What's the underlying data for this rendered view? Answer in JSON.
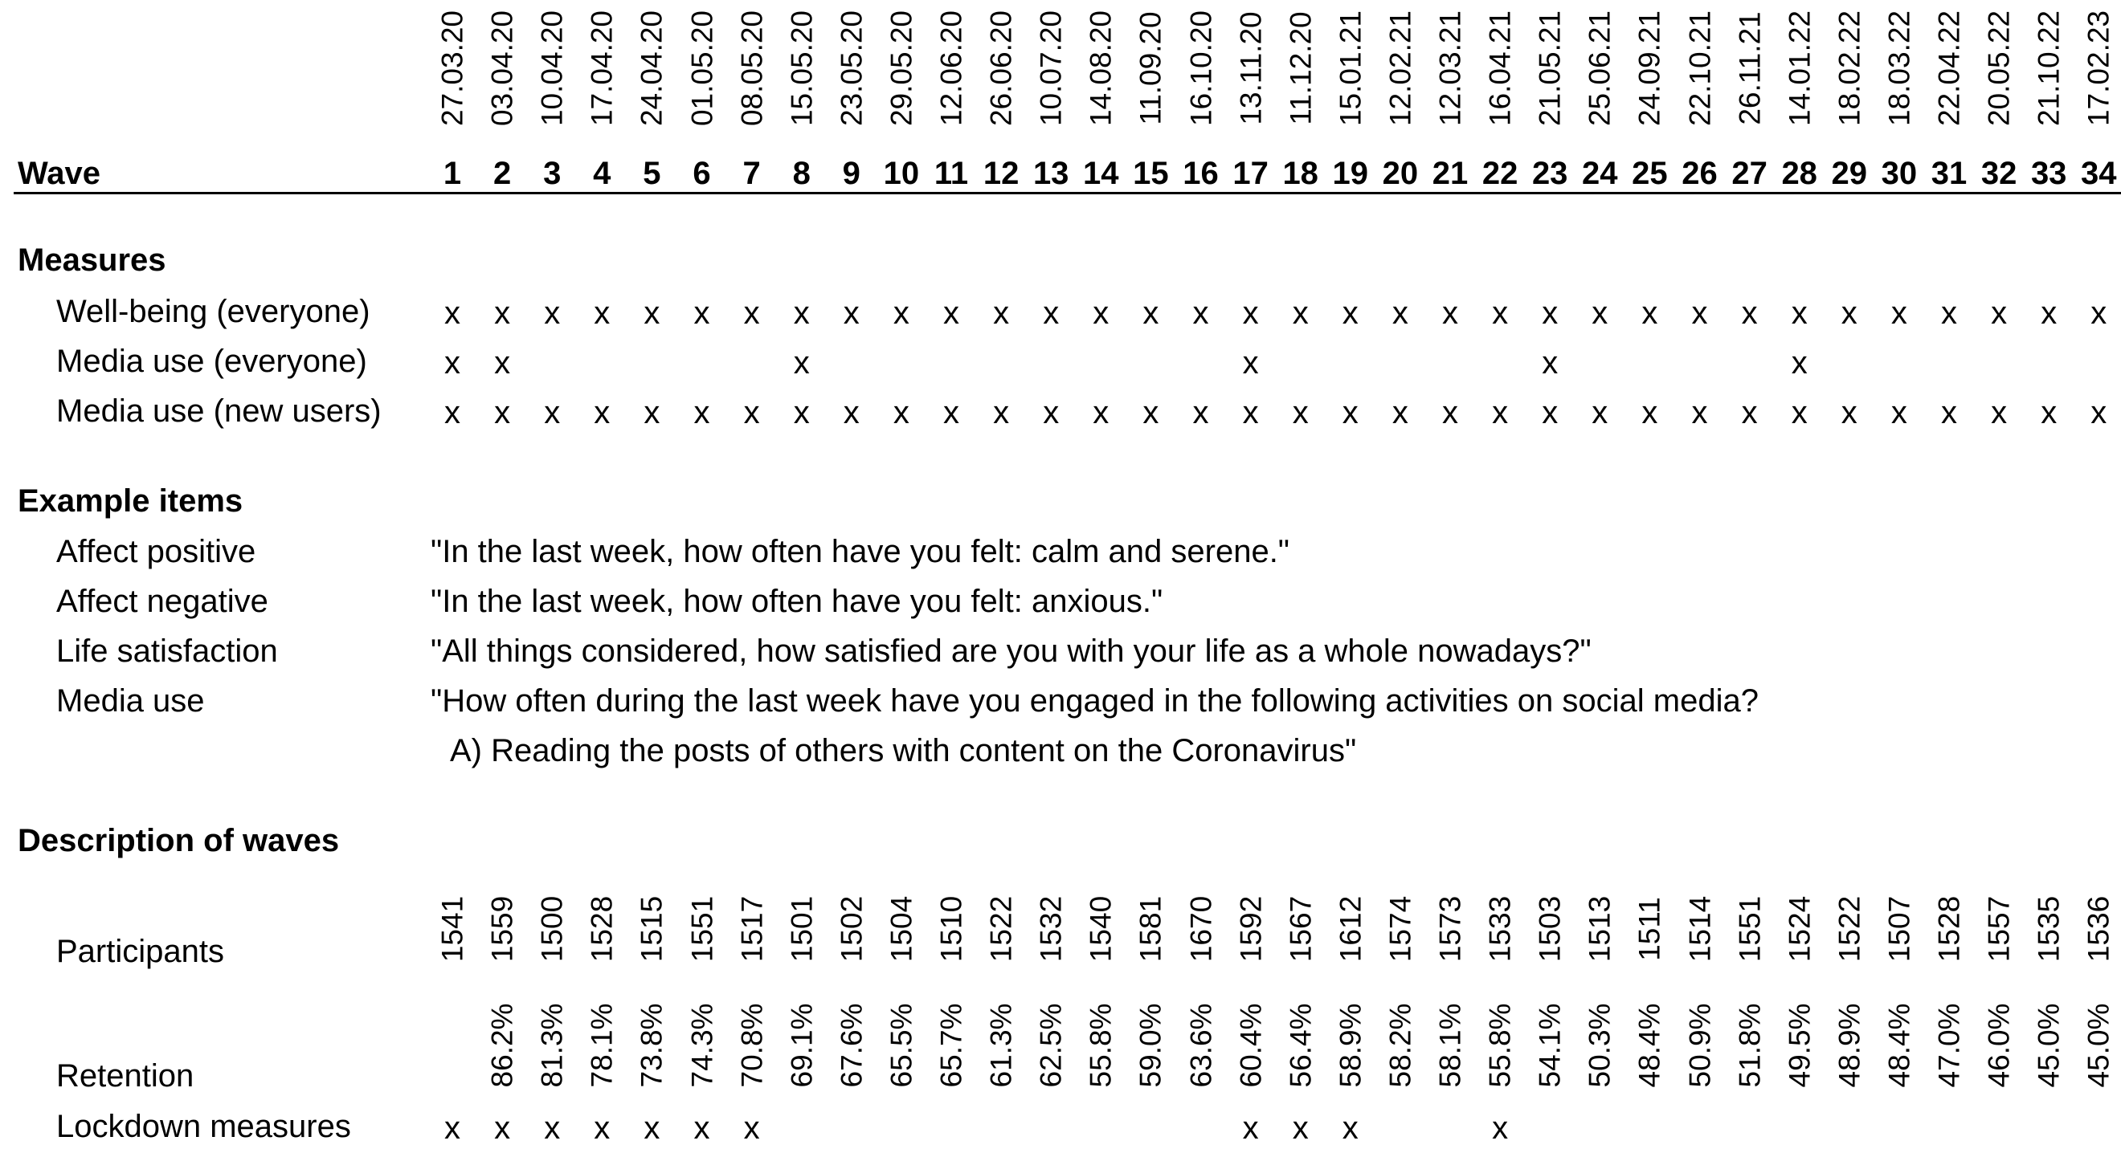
{
  "header": {
    "wave_label": "Wave",
    "dates": [
      "27.03.20",
      "03.04.20",
      "10.04.20",
      "17.04.20",
      "24.04.20",
      "01.05.20",
      "08.05.20",
      "15.05.20",
      "23.05.20",
      "29.05.20",
      "12.06.20",
      "26.06.20",
      "10.07.20",
      "14.08.20",
      "11.09.20",
      "16.10.20",
      "13.11.20",
      "11.12.20",
      "15.01.21",
      "12.02.21",
      "12.03.21",
      "16.04.21",
      "21.05.21",
      "25.06.21",
      "24.09.21",
      "22.10.21",
      "26.11.21",
      "14.01.22",
      "18.02.22",
      "18.03.22",
      "22.04.22",
      "20.05.22",
      "21.10.22",
      "17.02.23"
    ],
    "wave_numbers": [
      "1",
      "2",
      "3",
      "4",
      "5",
      "6",
      "7",
      "8",
      "9",
      "10",
      "11",
      "12",
      "13",
      "14",
      "15",
      "16",
      "17",
      "18",
      "19",
      "20",
      "21",
      "22",
      "23",
      "24",
      "25",
      "26",
      "27",
      "28",
      "29",
      "30",
      "31",
      "32",
      "33",
      "34"
    ]
  },
  "measures": {
    "heading": "Measures",
    "mark": "x",
    "rows": [
      {
        "label": "Well-being (everyone)",
        "waves": [
          1,
          2,
          3,
          4,
          5,
          6,
          7,
          8,
          9,
          10,
          11,
          12,
          13,
          14,
          15,
          16,
          17,
          18,
          19,
          20,
          21,
          22,
          23,
          24,
          25,
          26,
          27,
          28,
          29,
          30,
          31,
          32,
          33,
          34
        ]
      },
      {
        "label": "Media use (everyone)",
        "waves": [
          1,
          2,
          8,
          17,
          23,
          28
        ]
      },
      {
        "label": "Media use (new users)",
        "waves": [
          1,
          2,
          3,
          4,
          5,
          6,
          7,
          8,
          9,
          10,
          11,
          12,
          13,
          14,
          15,
          16,
          17,
          18,
          19,
          20,
          21,
          22,
          23,
          24,
          25,
          26,
          27,
          28,
          29,
          30,
          31,
          32,
          33,
          34
        ]
      }
    ]
  },
  "example_items": {
    "heading": "Example items",
    "rows": [
      {
        "label": "Affect positive",
        "text": "\"In the last week, how often have you felt: calm and serene.\""
      },
      {
        "label": "Affect negative",
        "text": "\"In the last week, how often have you felt: anxious.\""
      },
      {
        "label": "Life satisfaction",
        "text": "\"All things considered, how satisfied are you with your life as a whole nowadays?\""
      },
      {
        "label": "Media use",
        "text": "\"How often during the last week have you engaged in the following activities on social media?"
      },
      {
        "label": "",
        "text": "A) Reading the posts of others with content on the Coronavirus\""
      }
    ]
  },
  "description": {
    "heading": "Description of waves",
    "participants_label": "Participants",
    "participants": [
      "1541",
      "1559",
      "1500",
      "1528",
      "1515",
      "1551",
      "1517",
      "1501",
      "1502",
      "1504",
      "1510",
      "1522",
      "1532",
      "1540",
      "1581",
      "1670",
      "1592",
      "1567",
      "1612",
      "1574",
      "1573",
      "1533",
      "1503",
      "1513",
      "1511",
      "1514",
      "1551",
      "1524",
      "1522",
      "1507",
      "1528",
      "1557",
      "1535",
      "1536"
    ],
    "retention_label": "Retention",
    "retention": [
      "",
      "86.2%",
      "81.3%",
      "78.1%",
      "73.8%",
      "74.3%",
      "70.8%",
      "69.1%",
      "67.6%",
      "65.5%",
      "65.7%",
      "61.3%",
      "62.5%",
      "55.8%",
      "59.0%",
      "63.6%",
      "60.4%",
      "56.4%",
      "58.9%",
      "58.2%",
      "58.1%",
      "55.8%",
      "54.1%",
      "50.3%",
      "48.4%",
      "50.9%",
      "51.8%",
      "49.5%",
      "48.9%",
      "48.4%",
      "47.0%",
      "46.0%",
      "45.0%",
      "45.0%"
    ],
    "lockdown_label": "Lockdown measures",
    "lockdown_waves": [
      1,
      2,
      3,
      4,
      5,
      6,
      7,
      17,
      18,
      19,
      22
    ]
  }
}
